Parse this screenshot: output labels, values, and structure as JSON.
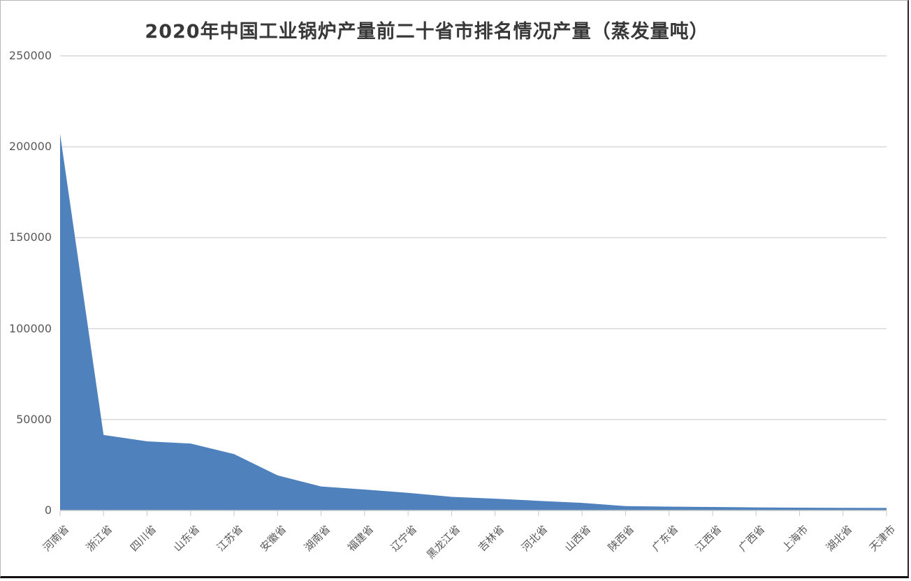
{
  "title": "2020年中国工业锅炉产量前二十省市排名情况产量（蒸发量吨）",
  "chart_data": {
    "type": "area",
    "title": "2020年中国工业锅炉产量前二十省市排名情况产量（蒸发量吨）",
    "categories": [
      "河南省",
      "浙江省",
      "四川省",
      "山东省",
      "江苏省",
      "安徽省",
      "湖南省",
      "福建省",
      "辽宁省",
      "黑龙江省",
      "吉林省",
      "河北省",
      "山西省",
      "陕西省",
      "广东省",
      "江西省",
      "广西省",
      "上海市",
      "湖北省",
      "天津市"
    ],
    "values": [
      207000,
      41500,
      38000,
      36800,
      31000,
      19300,
      13200,
      11500,
      9700,
      7500,
      6500,
      5300,
      4200,
      2400,
      2100,
      1900,
      1700,
      1550,
      1450,
      1400
    ],
    "xlabel": "",
    "ylabel": "",
    "ylim": [
      0,
      250000
    ],
    "ytick_interval": 50000,
    "ytick_labels": [
      "0",
      "50000",
      "100000",
      "150000",
      "200000",
      "250000"
    ],
    "grid": true,
    "legend": "none",
    "colors": {
      "area_fill": "#4F81BD",
      "gridline": "#D9D9D9",
      "axis_line": "#C9C9C9",
      "tick_mark": "#C9C9C9",
      "axis_label": "#595959",
      "title": "#383838"
    }
  }
}
